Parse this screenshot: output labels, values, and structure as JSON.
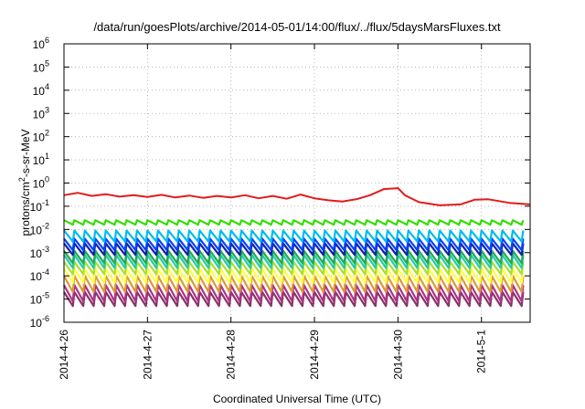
{
  "chart_data": {
    "type": "line",
    "title": "/data/run/goesPlots/archive/2014-05-01/14:00/flux/../flux/5daysMarsFluxes.txt",
    "xlabel": "Coordinated Universal Time (UTC)",
    "ylabel": {
      "prefix": "protons/cm",
      "superscript": "2",
      "suffix": "-s-sr-MeV"
    },
    "x_ticks": [
      "2014-4-26",
      "2014-4-27",
      "2014-4-28",
      "2014-4-29",
      "2014-4-30",
      "2014-5-1"
    ],
    "xlim": [
      "2014-04-26T00:00",
      "2014-05-01T14:00"
    ],
    "y_scale": "log",
    "ylim": [
      1e-06,
      1000000
    ],
    "y_ticks": [
      {
        "base": "10",
        "exp": "-6",
        "value": 1e-06
      },
      {
        "base": "10",
        "exp": "-5",
        "value": 1e-05
      },
      {
        "base": "10",
        "exp": "-4",
        "value": 0.0001
      },
      {
        "base": "10",
        "exp": "-3",
        "value": 0.001
      },
      {
        "base": "10",
        "exp": "-2",
        "value": 0.01
      },
      {
        "base": "10",
        "exp": "-1",
        "value": 0.1
      },
      {
        "base": "10",
        "exp": "0",
        "value": 1
      },
      {
        "base": "10",
        "exp": "1",
        "value": 10
      },
      {
        "base": "10",
        "exp": "2",
        "value": 100
      },
      {
        "base": "10",
        "exp": "3",
        "value": 1000
      },
      {
        "base": "10",
        "exp": "4",
        "value": 10000
      },
      {
        "base": "10",
        "exp": "5",
        "value": 100000
      },
      {
        "base": "10",
        "exp": "6",
        "value": 1000000
      }
    ],
    "grid": true,
    "legend": "none",
    "series": [
      {
        "color": "#e41a1c",
        "points": [
          [
            "2014-04-26T00:00",
            0.3
          ],
          [
            "2014-04-26T04:00",
            0.38
          ],
          [
            "2014-04-26T08:00",
            0.28
          ],
          [
            "2014-04-26T12:00",
            0.33
          ],
          [
            "2014-04-26T16:00",
            0.26
          ],
          [
            "2014-04-26T20:00",
            0.3
          ],
          [
            "2014-04-27T00:00",
            0.25
          ],
          [
            "2014-04-27T04:00",
            0.31
          ],
          [
            "2014-04-27T08:00",
            0.24
          ],
          [
            "2014-04-27T12:00",
            0.29
          ],
          [
            "2014-04-27T16:00",
            0.23
          ],
          [
            "2014-04-27T20:00",
            0.28
          ],
          [
            "2014-04-28T00:00",
            0.24
          ],
          [
            "2014-04-28T04:00",
            0.3
          ],
          [
            "2014-04-28T08:00",
            0.22
          ],
          [
            "2014-04-28T12:00",
            0.28
          ],
          [
            "2014-04-28T16:00",
            0.21
          ],
          [
            "2014-04-28T20:00",
            0.32
          ],
          [
            "2014-04-29T00:00",
            0.22
          ],
          [
            "2014-04-29T04:00",
            0.18
          ],
          [
            "2014-04-29T08:00",
            0.16
          ],
          [
            "2014-04-29T12:00",
            0.2
          ],
          [
            "2014-04-29T16:00",
            0.3
          ],
          [
            "2014-04-29T20:00",
            0.55
          ],
          [
            "2014-04-30T00:00",
            0.6
          ],
          [
            "2014-04-30T02:00",
            0.3
          ],
          [
            "2014-04-30T06:00",
            0.15
          ],
          [
            "2014-04-30T12:00",
            0.11
          ],
          [
            "2014-04-30T18:00",
            0.12
          ],
          [
            "2014-04-30T22:00",
            0.19
          ],
          [
            "2014-05-01T02:00",
            0.2
          ],
          [
            "2014-05-01T08:00",
            0.14
          ],
          [
            "2014-05-01T14:00",
            0.12
          ]
        ]
      },
      {
        "color": "#33dd00",
        "low": 0.016,
        "high": 0.025
      },
      {
        "color": "#00bbee",
        "low": 0.003,
        "high": 0.009
      },
      {
        "color": "#0044ff",
        "low": 0.0013,
        "high": 0.004
      },
      {
        "color": "#1122aa",
        "low": 0.0008,
        "high": 0.0025
      },
      {
        "color": "#22aa55",
        "low": 0.00035,
        "high": 0.0012
      },
      {
        "color": "#22ccaa",
        "low": 0.00022,
        "high": 0.0008
      },
      {
        "color": "#aadd33",
        "low": 0.00012,
        "high": 0.0004
      },
      {
        "color": "#ffff44",
        "low": 5e-05,
        "high": 0.0002
      },
      {
        "color": "#dd9933",
        "low": 2e-05,
        "high": 0.0001
      },
      {
        "color": "#aa3388",
        "low": 8e-06,
        "high": 4e-05
      },
      {
        "color": "#883366",
        "low": 5e-06,
        "high": 2e-05
      }
    ]
  }
}
